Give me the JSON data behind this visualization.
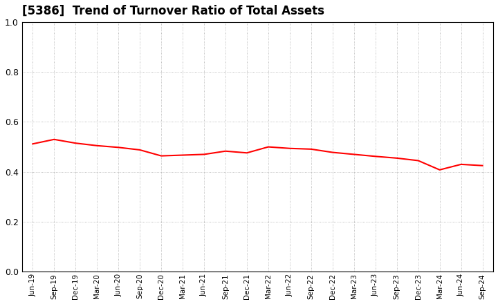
{
  "title": "[5386]  Trend of Turnover Ratio of Total Assets",
  "title_fontsize": 12,
  "line_color": "#FF0000",
  "line_width": 1.5,
  "background_color": "#FFFFFF",
  "grid_color": "#AAAAAA",
  "ylim": [
    0.0,
    1.0
  ],
  "yticks": [
    0.0,
    0.2,
    0.4,
    0.6,
    0.8,
    1.0
  ],
  "labels": [
    "Jun-19",
    "Sep-19",
    "Dec-19",
    "Mar-20",
    "Jun-20",
    "Sep-20",
    "Dec-20",
    "Mar-21",
    "Jun-21",
    "Sep-21",
    "Dec-21",
    "Mar-22",
    "Jun-22",
    "Sep-22",
    "Dec-22",
    "Mar-23",
    "Jun-23",
    "Sep-23",
    "Dec-23",
    "Mar-24",
    "Jun-24",
    "Sep-24"
  ],
  "values": [
    0.512,
    0.53,
    0.515,
    0.505,
    0.498,
    0.488,
    0.464,
    0.467,
    0.47,
    0.483,
    0.476,
    0.5,
    0.494,
    0.491,
    0.478,
    0.47,
    0.462,
    0.455,
    0.445,
    0.408,
    0.43,
    0.425
  ]
}
